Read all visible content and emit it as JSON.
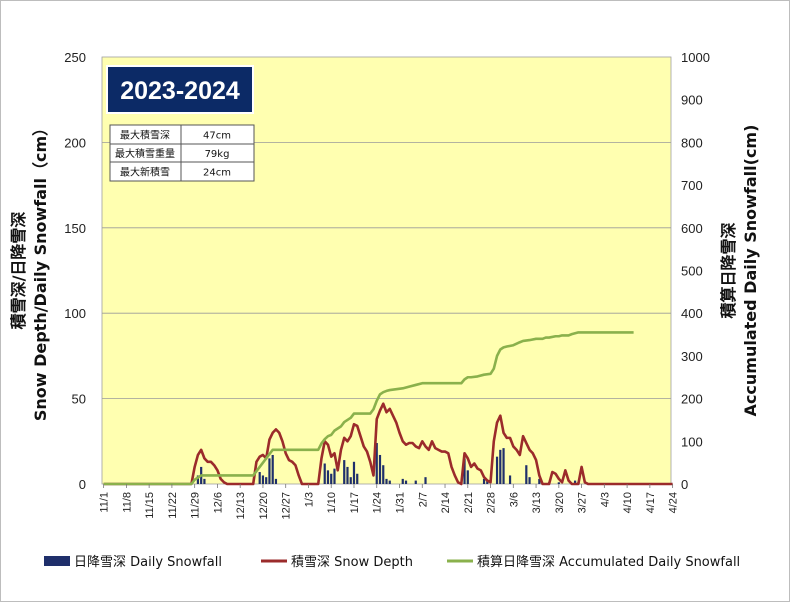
{
  "chart_data": {
    "type": "bar+line",
    "season_badge": "2023-2024",
    "stats": [
      {
        "label": "最大積雪深",
        "value": "47cm"
      },
      {
        "label": "最大積雪重量",
        "value": "79kg"
      },
      {
        "label": "最大新積雪",
        "value": "24cm"
      }
    ],
    "y_left": {
      "label": "積雪深/日降雪深\nSnow Depth/Daily Snowfall（cm）",
      "min": 0,
      "max": 250,
      "ticks": [
        0,
        50,
        100,
        150,
        200,
        250
      ]
    },
    "y_right": {
      "label": "積算日降雪深\nAccumulated Daily Snowfall(cm)",
      "min": 0,
      "max": 1000,
      "ticks": [
        0,
        100,
        200,
        300,
        400,
        500,
        600,
        700,
        800,
        900,
        1000
      ]
    },
    "x_ticks": [
      "11/1",
      "11/8",
      "11/15",
      "11/22",
      "11/29",
      "12/6",
      "12/13",
      "12/20",
      "12/27",
      "1/3",
      "1/10",
      "1/17",
      "1/24",
      "1/31",
      "2/7",
      "2/14",
      "2/21",
      "2/28",
      "3/6",
      "3/13",
      "3/20",
      "3/27",
      "4/3",
      "4/10",
      "4/17",
      "4/24"
    ],
    "grid": true,
    "legend_position": "bottom",
    "series": [
      {
        "name": "日降雪深 Daily Snowfall",
        "type": "bar",
        "axis": "left",
        "color": "#1f2f6b",
        "points": [
          [
            29,
            5
          ],
          [
            30,
            10
          ],
          [
            31,
            3
          ],
          [
            48,
            7
          ],
          [
            49,
            5
          ],
          [
            50,
            4
          ],
          [
            51,
            15
          ],
          [
            52,
            17
          ],
          [
            53,
            3
          ],
          [
            68,
            12
          ],
          [
            69,
            8
          ],
          [
            70,
            6
          ],
          [
            71,
            9
          ],
          [
            74,
            14
          ],
          [
            75,
            10
          ],
          [
            76,
            4
          ],
          [
            77,
            13
          ],
          [
            78,
            6
          ],
          [
            84,
            24
          ],
          [
            85,
            17
          ],
          [
            86,
            11
          ],
          [
            87,
            3
          ],
          [
            88,
            2
          ],
          [
            92,
            3
          ],
          [
            93,
            2
          ],
          [
            96,
            2
          ],
          [
            99,
            4
          ],
          [
            111,
            15
          ],
          [
            112,
            8
          ],
          [
            117,
            3
          ],
          [
            118,
            2
          ],
          [
            121,
            16
          ],
          [
            122,
            20
          ],
          [
            123,
            21
          ],
          [
            125,
            5
          ],
          [
            130,
            11
          ],
          [
            131,
            4
          ],
          [
            134,
            3
          ],
          [
            137,
            1
          ],
          [
            140,
            1
          ],
          [
            145,
            2
          ],
          [
            146,
            1
          ]
        ]
      },
      {
        "name": "積雪深 Snow Depth",
        "type": "line",
        "axis": "left",
        "color": "#9b2b2b",
        "points": [
          [
            0,
            0
          ],
          [
            27,
            0
          ],
          [
            28,
            10
          ],
          [
            29,
            17
          ],
          [
            30,
            20
          ],
          [
            31,
            15
          ],
          [
            32,
            13
          ],
          [
            33,
            13
          ],
          [
            34,
            11
          ],
          [
            35,
            8
          ],
          [
            36,
            3
          ],
          [
            37,
            1
          ],
          [
            38,
            0
          ],
          [
            46,
            0
          ],
          [
            47,
            13
          ],
          [
            48,
            16
          ],
          [
            49,
            17
          ],
          [
            50,
            15
          ],
          [
            51,
            26
          ],
          [
            52,
            30
          ],
          [
            53,
            32
          ],
          [
            54,
            30
          ],
          [
            55,
            25
          ],
          [
            56,
            18
          ],
          [
            57,
            14
          ],
          [
            58,
            13
          ],
          [
            59,
            11
          ],
          [
            60,
            5
          ],
          [
            61,
            0
          ],
          [
            66,
            0
          ],
          [
            67,
            15
          ],
          [
            68,
            25
          ],
          [
            69,
            23
          ],
          [
            70,
            16
          ],
          [
            71,
            18
          ],
          [
            72,
            8
          ],
          [
            73,
            20
          ],
          [
            74,
            27
          ],
          [
            75,
            25
          ],
          [
            76,
            28
          ],
          [
            77,
            35
          ],
          [
            78,
            34
          ],
          [
            79,
            28
          ],
          [
            80,
            22
          ],
          [
            81,
            19
          ],
          [
            82,
            13
          ],
          [
            83,
            5
          ],
          [
            84,
            38
          ],
          [
            85,
            43
          ],
          [
            86,
            47
          ],
          [
            87,
            42
          ],
          [
            88,
            44
          ],
          [
            89,
            40
          ],
          [
            90,
            36
          ],
          [
            91,
            30
          ],
          [
            92,
            25
          ],
          [
            93,
            23
          ],
          [
            94,
            24
          ],
          [
            95,
            24
          ],
          [
            96,
            22
          ],
          [
            97,
            21
          ],
          [
            98,
            25
          ],
          [
            99,
            22
          ],
          [
            100,
            20
          ],
          [
            101,
            25
          ],
          [
            102,
            21
          ],
          [
            103,
            20
          ],
          [
            104,
            19
          ],
          [
            105,
            19
          ],
          [
            106,
            18
          ],
          [
            107,
            10
          ],
          [
            108,
            5
          ],
          [
            109,
            1
          ],
          [
            110,
            0
          ],
          [
            111,
            18
          ],
          [
            112,
            15
          ],
          [
            113,
            10
          ],
          [
            114,
            12
          ],
          [
            115,
            9
          ],
          [
            116,
            8
          ],
          [
            117,
            4
          ],
          [
            118,
            2
          ],
          [
            119,
            1
          ],
          [
            120,
            25
          ],
          [
            121,
            36
          ],
          [
            122,
            40
          ],
          [
            123,
            30
          ],
          [
            124,
            27
          ],
          [
            125,
            27
          ],
          [
            126,
            22
          ],
          [
            127,
            20
          ],
          [
            128,
            17
          ],
          [
            129,
            28
          ],
          [
            130,
            24
          ],
          [
            131,
            20
          ],
          [
            132,
            18
          ],
          [
            133,
            14
          ],
          [
            134,
            5
          ],
          [
            135,
            0
          ],
          [
            137,
            0
          ],
          [
            138,
            7
          ],
          [
            139,
            6
          ],
          [
            140,
            3
          ],
          [
            141,
            1
          ],
          [
            142,
            8
          ],
          [
            143,
            2
          ],
          [
            144,
            0
          ],
          [
            146,
            0
          ],
          [
            147,
            10
          ],
          [
            148,
            1
          ],
          [
            149,
            0
          ],
          [
            175,
            0
          ]
        ]
      },
      {
        "name": "積算日降雪深 Accumulated Daily Snowfall",
        "type": "line",
        "axis": "right",
        "color": "#8ab14c",
        "points": [
          [
            0,
            0
          ],
          [
            27,
            0
          ],
          [
            28,
            10
          ],
          [
            29,
            15
          ],
          [
            30,
            20
          ],
          [
            46,
            20
          ],
          [
            47,
            30
          ],
          [
            48,
            40
          ],
          [
            49,
            50
          ],
          [
            50,
            60
          ],
          [
            51,
            70
          ],
          [
            52,
            80
          ],
          [
            66,
            80
          ],
          [
            67,
            95
          ],
          [
            68,
            105
          ],
          [
            69,
            112
          ],
          [
            70,
            115
          ],
          [
            71,
            125
          ],
          [
            72,
            130
          ],
          [
            73,
            135
          ],
          [
            74,
            145
          ],
          [
            75,
            150
          ],
          [
            76,
            155
          ],
          [
            77,
            165
          ],
          [
            81,
            165
          ],
          [
            82,
            165
          ],
          [
            83,
            175
          ],
          [
            84,
            195
          ],
          [
            85,
            210
          ],
          [
            86,
            215
          ],
          [
            87,
            218
          ],
          [
            88,
            220
          ],
          [
            90,
            222
          ],
          [
            92,
            224
          ],
          [
            94,
            228
          ],
          [
            96,
            232
          ],
          [
            98,
            236
          ],
          [
            100,
            236
          ],
          [
            110,
            236
          ],
          [
            111,
            245
          ],
          [
            112,
            250
          ],
          [
            113,
            250
          ],
          [
            115,
            252
          ],
          [
            117,
            256
          ],
          [
            119,
            258
          ],
          [
            120,
            270
          ],
          [
            121,
            300
          ],
          [
            122,
            315
          ],
          [
            123,
            320
          ],
          [
            124,
            322
          ],
          [
            126,
            325
          ],
          [
            128,
            332
          ],
          [
            129,
            335
          ],
          [
            131,
            337
          ],
          [
            133,
            340
          ],
          [
            135,
            340
          ],
          [
            136,
            343
          ],
          [
            137,
            343
          ],
          [
            139,
            346
          ],
          [
            140,
            346
          ],
          [
            141,
            348
          ],
          [
            143,
            348
          ],
          [
            144,
            351
          ],
          [
            145,
            353
          ],
          [
            146,
            355
          ],
          [
            147,
            355
          ],
          [
            163,
            355
          ]
        ]
      }
    ]
  }
}
